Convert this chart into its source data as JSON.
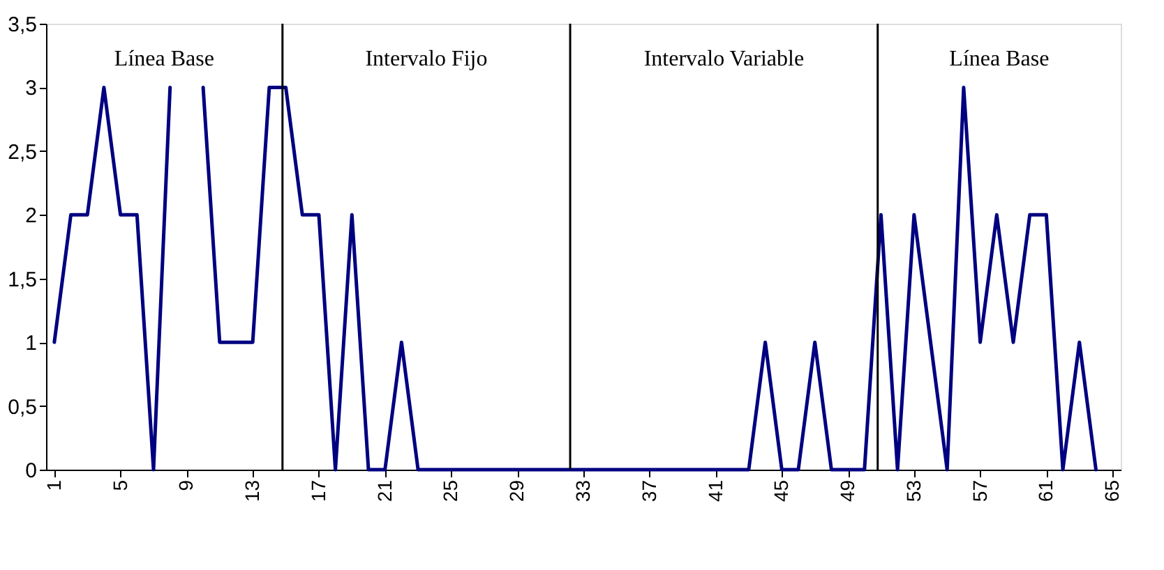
{
  "chart_data": {
    "type": "line",
    "x": [
      1,
      2,
      3,
      4,
      5,
      6,
      7,
      8,
      9,
      10,
      11,
      12,
      13,
      14,
      15,
      16,
      17,
      18,
      19,
      20,
      21,
      22,
      23,
      24,
      25,
      26,
      27,
      28,
      29,
      30,
      31,
      32,
      33,
      34,
      35,
      36,
      37,
      38,
      39,
      40,
      41,
      42,
      43,
      44,
      45,
      46,
      47,
      48,
      49,
      50,
      51,
      52,
      53,
      54,
      55,
      56,
      57,
      58,
      59,
      60,
      61,
      62,
      63,
      64
    ],
    "series": [
      {
        "color": "#000080",
        "values": [
          1,
          2,
          2,
          3,
          2,
          2,
          0,
          3,
          null,
          3,
          1,
          1,
          1,
          3,
          3,
          2,
          2,
          0,
          2,
          0,
          0,
          1,
          0,
          0,
          0,
          0,
          0,
          0,
          0,
          0,
          0,
          0,
          0,
          0,
          0,
          0,
          0,
          0,
          0,
          0,
          0,
          0,
          0,
          1,
          0,
          0,
          1,
          0,
          0,
          0,
          2,
          0,
          2,
          1,
          0,
          3,
          1,
          2,
          1,
          2,
          2,
          0,
          1,
          0
        ]
      }
    ],
    "xlim": [
      0.5,
      65.5
    ],
    "xticks": [
      1,
      5,
      9,
      13,
      17,
      21,
      25,
      29,
      33,
      37,
      41,
      45,
      49,
      53,
      57,
      61,
      65
    ],
    "ylim": [
      0,
      3.5
    ],
    "yticks": [
      0,
      {
        "value": 0.5,
        "label": "0,5"
      },
      1,
      {
        "value": 1.5,
        "label": "1,5"
      },
      2,
      {
        "value": 2.5,
        "label": "2,5"
      },
      3,
      {
        "value": 3.5,
        "label": "3,5"
      }
    ],
    "ref_lines": [
      {
        "axis": "x",
        "value": 14.8,
        "color": "#000000"
      },
      {
        "axis": "x",
        "value": 32.2,
        "color": "#000000"
      },
      {
        "axis": "x",
        "value": 50.8,
        "color": "#000000"
      }
    ],
    "annotations": [
      "Línea Base",
      "Intervalo Fijo",
      "Intervalo Variable",
      "Línea Base"
    ],
    "grid": false,
    "marker": "none",
    "line_style": "solid"
  }
}
